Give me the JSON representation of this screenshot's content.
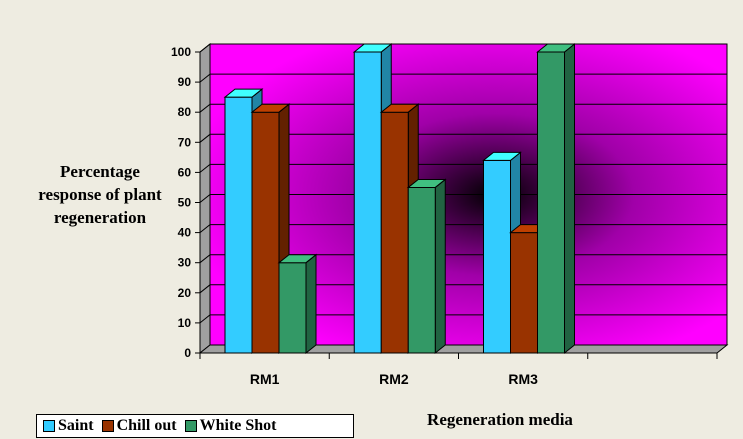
{
  "chart_data": {
    "type": "bar",
    "categories": [
      "RM1",
      "RM2",
      "RM3",
      ""
    ],
    "series": [
      {
        "name": "Saint",
        "values": [
          85,
          100,
          64,
          null
        ],
        "color": "#33ccff"
      },
      {
        "name": "Chill out",
        "values": [
          80,
          80,
          40,
          null
        ],
        "color": "#993300"
      },
      {
        "name": "White Shot",
        "values": [
          30,
          55,
          100,
          null
        ],
        "color": "#339966"
      }
    ],
    "ylabel": "Percentage response of plant regeneration",
    "xlabel": "Regeneration media",
    "ylim": [
      0,
      100
    ],
    "yticks": [
      0,
      10,
      20,
      30,
      40,
      50,
      60,
      70,
      80,
      90,
      100
    ],
    "grid": true,
    "legend_position": "bottom-left",
    "background_color": "#ff00ff"
  }
}
